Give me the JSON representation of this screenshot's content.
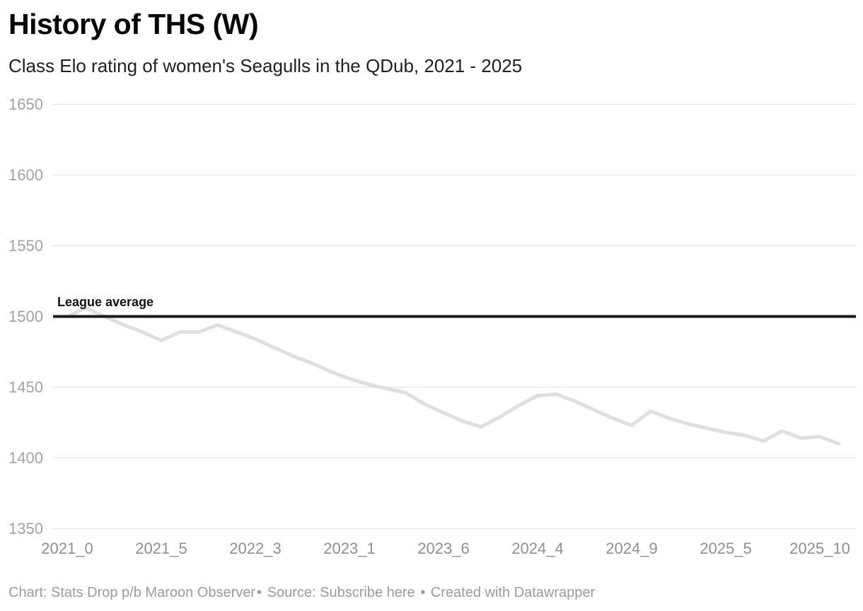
{
  "header": {
    "title": "History of THS (W)",
    "subtitle": "Class Elo rating of women's Seagulls in the QDub, 2021 - 2025"
  },
  "chart_data": {
    "type": "line",
    "title": "History of THS (W)",
    "subtitle": "Class Elo rating of women's Seagulls in the QDub, 2021 - 2025",
    "xlabel": "",
    "ylabel": "",
    "grid": "horizontal",
    "legend": "none",
    "y_ticks": [
      1650,
      1600,
      1550,
      1500,
      1450,
      1400,
      1350
    ],
    "ylim": [
      1350,
      1656
    ],
    "x_tick_labels": [
      "2021_0",
      "2021_5",
      "2022_3",
      "2023_1",
      "2023_6",
      "2024_4",
      "2024_9",
      "2025_5",
      "2025_10"
    ],
    "x_tick_indices": [
      0,
      5,
      10,
      15,
      20,
      25,
      30,
      35,
      40
    ],
    "series": [
      {
        "name": "THS (W) class Elo",
        "values": [
          1500,
          1506,
          1500,
          1494,
          1489,
          1483,
          1489,
          1489,
          1494,
          1489,
          1484,
          1478,
          1472,
          1467,
          1461,
          1456,
          1452,
          1449,
          1446,
          1438,
          1432,
          1426,
          1422,
          1429,
          1437,
          1444,
          1445,
          1440,
          1434,
          1428,
          1423,
          1433,
          1428,
          1424,
          1421,
          1418,
          1416,
          1412,
          1419,
          1414,
          1415,
          1410
        ]
      }
    ],
    "reference_line": {
      "value": 1500,
      "label": "League average"
    },
    "colors": {
      "line": "#dfdfdf",
      "grid": "#e4e4e4",
      "reference": "#1a1a1a",
      "reference_label_text": "#111111",
      "y_tick_text": "#a2a2a2",
      "x_tick_text": "#8f8f8f",
      "title_text": "#070707",
      "subtitle_text": "#1f1f1f",
      "footer_text": "#9b9b9b"
    }
  },
  "footer": {
    "credit": "Chart: Stats Drop p/b Maroon Observer",
    "separator": "•",
    "source_label": "Source:",
    "source_link_text": "Subscribe here",
    "attribution": "Created with Datawrapper"
  }
}
